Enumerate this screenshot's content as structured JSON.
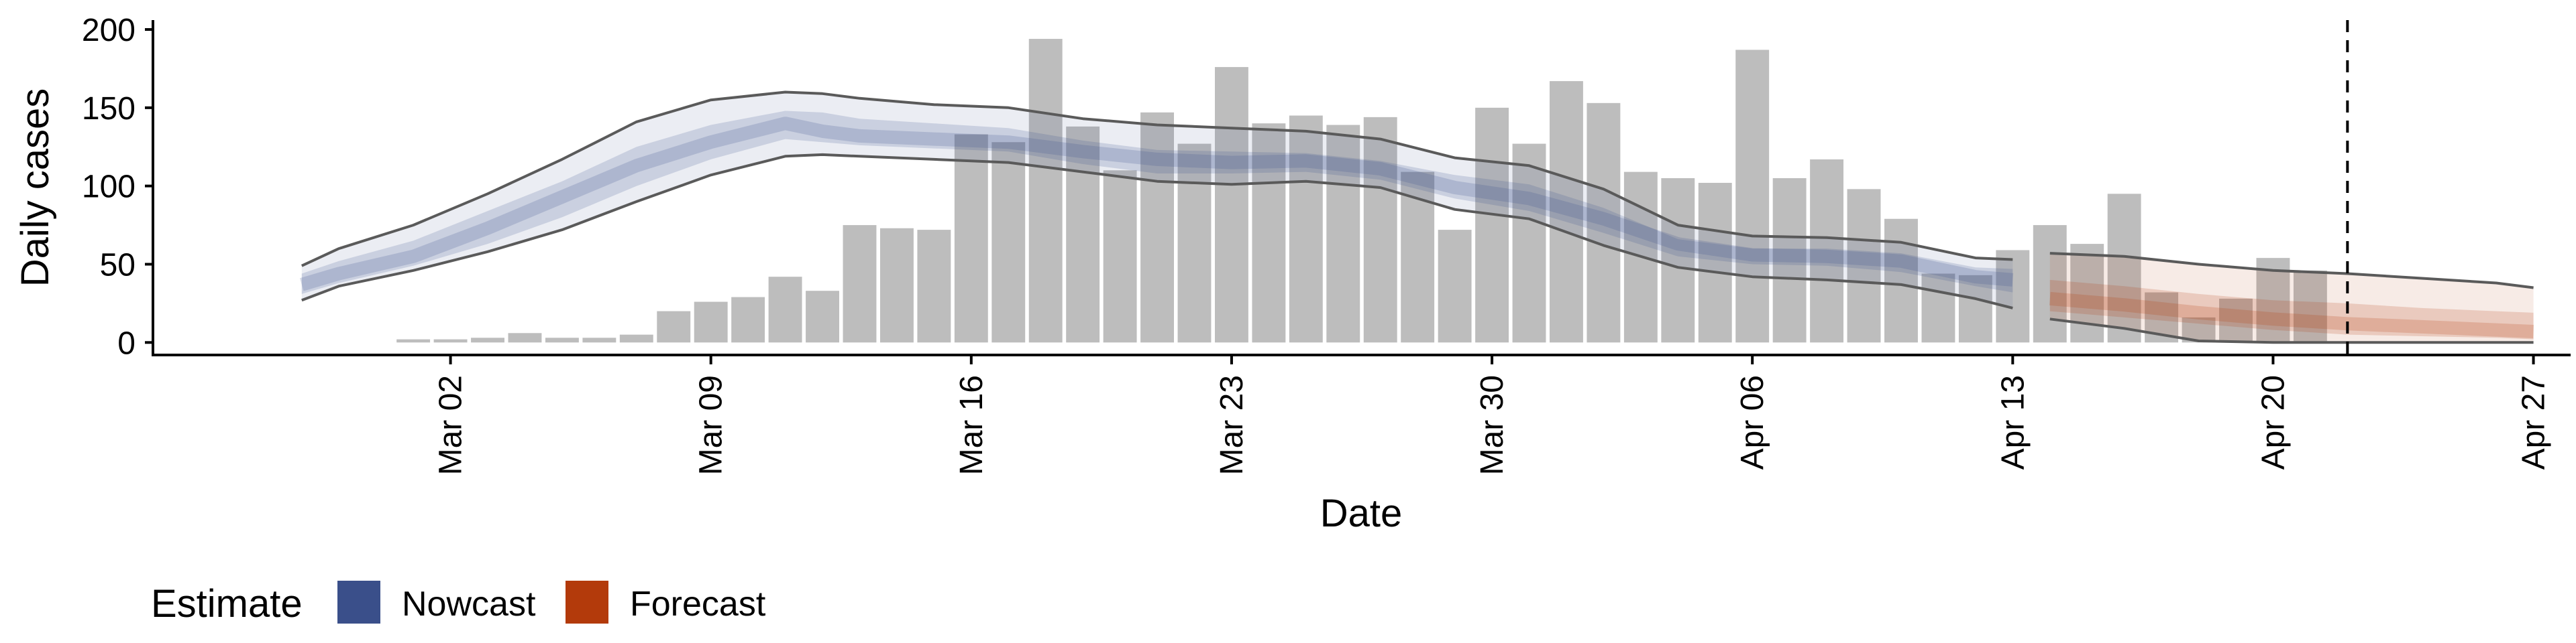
{
  "chart_data": {
    "type": "bar",
    "xlabel": "Date",
    "ylabel": "Daily cases",
    "ylim": [
      -8,
      206
    ],
    "yticks": [
      0,
      50,
      100,
      150,
      200
    ],
    "xrange": [
      "2020-02-23",
      "2020-04-28"
    ],
    "xticks": [
      {
        "date": "2020-03-02",
        "label": "Mar 02"
      },
      {
        "date": "2020-03-09",
        "label": "Mar 09"
      },
      {
        "date": "2020-03-16",
        "label": "Mar 16"
      },
      {
        "date": "2020-03-23",
        "label": "Mar 23"
      },
      {
        "date": "2020-03-30",
        "label": "Mar 30"
      },
      {
        "date": "2020-04-06",
        "label": "Apr 06"
      },
      {
        "date": "2020-04-13",
        "label": "Apr 13"
      },
      {
        "date": "2020-04-20",
        "label": "Apr 20"
      },
      {
        "date": "2020-04-27",
        "label": "Apr 27"
      }
    ],
    "bars": {
      "color": "#bdbdbd",
      "dates": [
        "2020-03-01",
        "2020-03-02",
        "2020-03-03",
        "2020-03-04",
        "2020-03-05",
        "2020-03-06",
        "2020-03-07",
        "2020-03-08",
        "2020-03-09",
        "2020-03-10",
        "2020-03-11",
        "2020-03-12",
        "2020-03-13",
        "2020-03-14",
        "2020-03-15",
        "2020-03-16",
        "2020-03-17",
        "2020-03-18",
        "2020-03-19",
        "2020-03-20",
        "2020-03-21",
        "2020-03-22",
        "2020-03-23",
        "2020-03-24",
        "2020-03-25",
        "2020-03-26",
        "2020-03-27",
        "2020-03-28",
        "2020-03-29",
        "2020-03-30",
        "2020-03-31",
        "2020-04-01",
        "2020-04-02",
        "2020-04-03",
        "2020-04-04",
        "2020-04-05",
        "2020-04-06",
        "2020-04-07",
        "2020-04-08",
        "2020-04-09",
        "2020-04-10",
        "2020-04-11",
        "2020-04-12",
        "2020-04-13",
        "2020-04-14",
        "2020-04-15",
        "2020-04-16",
        "2020-04-17",
        "2020-04-18",
        "2020-04-19",
        "2020-04-20",
        "2020-04-21",
        "2020-04-22"
      ],
      "values": [
        2,
        2,
        3,
        6,
        3,
        3,
        5,
        20,
        26,
        29,
        42,
        33,
        75,
        73,
        72,
        133,
        128,
        194,
        138,
        110,
        147,
        127,
        176,
        140,
        145,
        139,
        144,
        109,
        72,
        150,
        127,
        167,
        153,
        109,
        105,
        102,
        187,
        105,
        117,
        98,
        79,
        44,
        43,
        59,
        75,
        63,
        95,
        32,
        16,
        28,
        54,
        46,
        0
      ]
    },
    "nowcast": {
      "name": "Nowcast",
      "color": "#3a4f8a",
      "dates": [
        "2020-02-27",
        "2020-02-28",
        "2020-03-01",
        "2020-03-03",
        "2020-03-05",
        "2020-03-07",
        "2020-03-09",
        "2020-03-11",
        "2020-03-12",
        "2020-03-13",
        "2020-03-15",
        "2020-03-17",
        "2020-03-19",
        "2020-03-21",
        "2020-03-23",
        "2020-03-25",
        "2020-03-27",
        "2020-03-29",
        "2020-03-31",
        "2020-04-02",
        "2020-04-04",
        "2020-04-06",
        "2020-04-08",
        "2020-04-10",
        "2020-04-12",
        "2020-04-13"
      ],
      "upper90": [
        49,
        60,
        75,
        95,
        117,
        141,
        155,
        160,
        159,
        156,
        152,
        150,
        143,
        139,
        137,
        135,
        130,
        118,
        113,
        98,
        75,
        68,
        67,
        64,
        54,
        53
      ],
      "upper50": [
        44,
        52,
        65,
        84,
        103,
        125,
        139,
        148,
        147,
        143,
        140,
        137,
        129,
        123,
        122,
        121,
        116,
        107,
        101,
        86,
        66,
        60,
        60,
        57,
        48,
        47
      ],
      "median": [
        37,
        44,
        55,
        73,
        93,
        113,
        128,
        140,
        135,
        132,
        130,
        128,
        122,
        117,
        115,
        116,
        111,
        99,
        92,
        79,
        63,
        56,
        55,
        52,
        42,
        40
      ],
      "lower50": [
        31,
        38,
        49,
        63,
        80,
        100,
        117,
        130,
        128,
        126,
        124,
        122,
        114,
        108,
        108,
        109,
        104,
        92,
        84,
        70,
        55,
        50,
        49,
        45,
        36,
        32
      ],
      "lower90": [
        27,
        36,
        46,
        58,
        72,
        90,
        107,
        119,
        120,
        119,
        117,
        115,
        109,
        103,
        101,
        103,
        99,
        85,
        79,
        62,
        48,
        42,
        40,
        37,
        28,
        22
      ]
    },
    "forecast": {
      "name": "Forecast",
      "color": "#b33a0b",
      "dates": [
        "2020-04-14",
        "2020-04-16",
        "2020-04-18",
        "2020-04-20",
        "2020-04-22",
        "2020-04-24",
        "2020-04-26",
        "2020-04-27"
      ],
      "upper90": [
        57,
        55,
        50,
        46,
        44,
        41,
        38,
        35
      ],
      "upper50": [
        40,
        36,
        31,
        27,
        25,
        22,
        20,
        19
      ],
      "median": [
        28,
        24,
        19,
        15,
        12,
        10,
        8,
        7
      ],
      "lower50": [
        20,
        16,
        12,
        8,
        5,
        4,
        3,
        2
      ],
      "lower90": [
        15,
        9,
        1,
        0,
        0,
        0,
        0,
        0
      ]
    },
    "vline_date": "2020-04-22",
    "legend": {
      "title": "Estimate",
      "placement": "bottom-left",
      "items": [
        {
          "label": "Nowcast",
          "color": "#3a4f8a"
        },
        {
          "label": "Forecast",
          "color": "#b33a0b"
        }
      ]
    }
  }
}
